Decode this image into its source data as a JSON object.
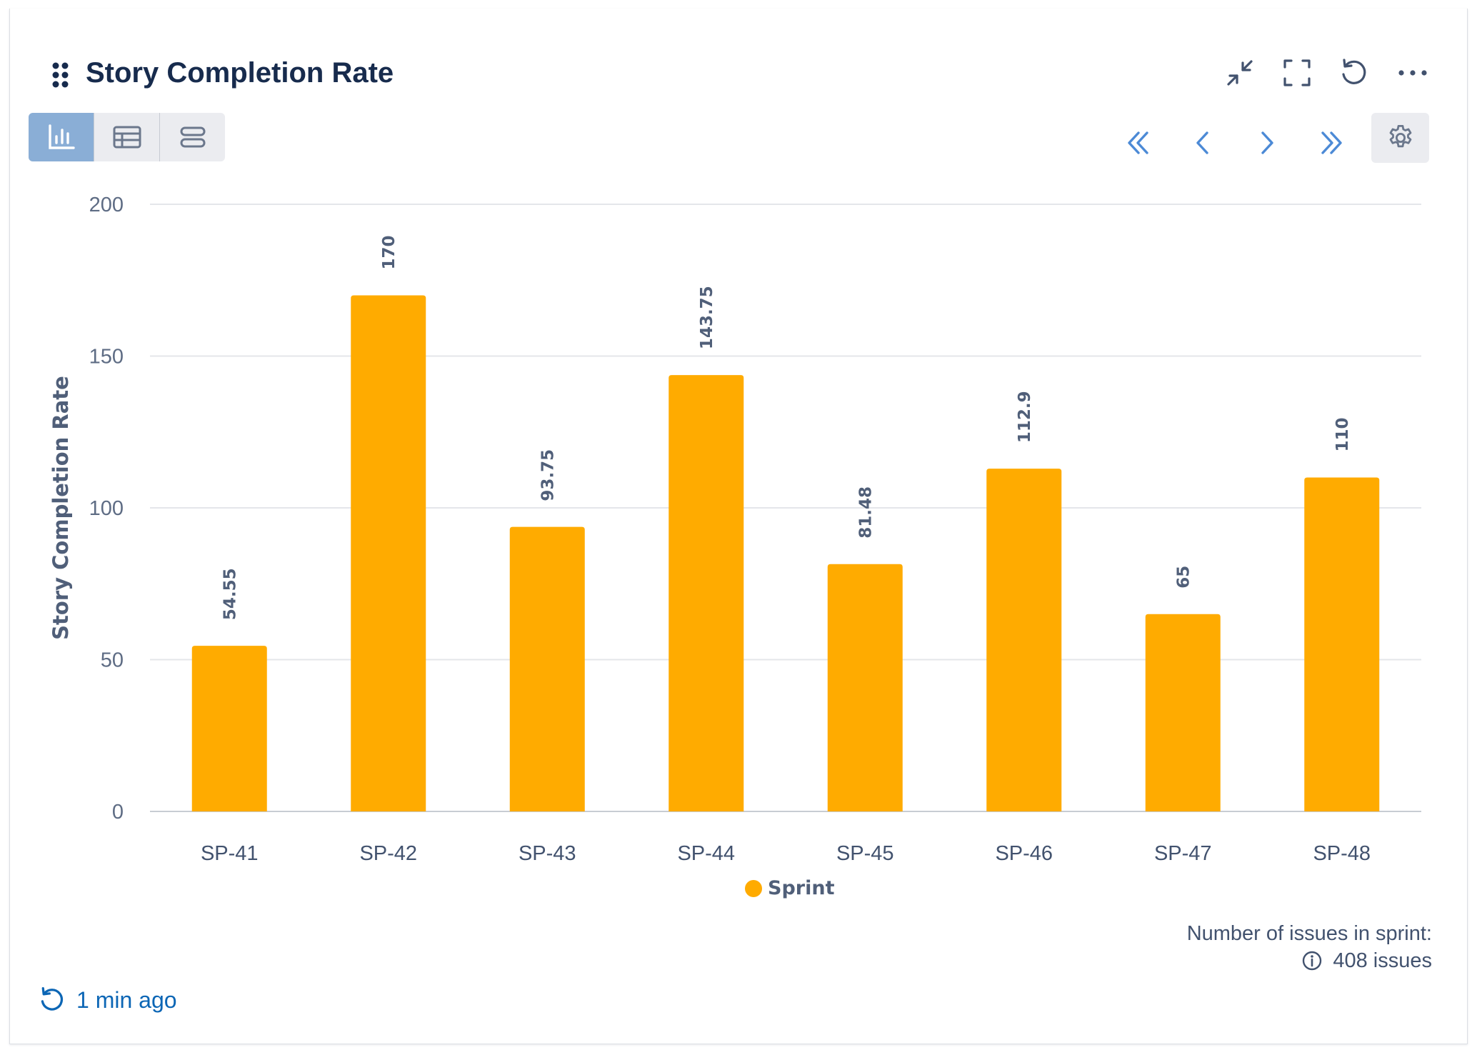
{
  "header": {
    "title": "Story Completion Rate"
  },
  "view_modes": [
    "chart",
    "table",
    "list"
  ],
  "chart_data": {
    "type": "bar",
    "title": "Story Completion Rate",
    "categories": [
      "SP-41",
      "SP-42",
      "SP-43",
      "SP-44",
      "SP-45",
      "SP-46",
      "SP-47",
      "SP-48"
    ],
    "series": [
      {
        "name": "Sprint",
        "values": [
          54.55,
          170,
          93.75,
          143.75,
          81.48,
          112.9,
          65,
          110
        ]
      }
    ],
    "value_labels": [
      "54.55",
      "170",
      "93.75",
      "143.75",
      "81.48",
      "112.9",
      "65",
      "110"
    ],
    "yticks": [
      "0",
      "50",
      "100",
      "150",
      "200"
    ],
    "ylim": [
      0,
      200
    ],
    "xlabel": "",
    "ylabel": "Story Completion Rate",
    "grid": true,
    "legend": "bottom-center",
    "color": "#FFAB00"
  },
  "legend": {
    "label": "Sprint"
  },
  "footer": {
    "issues_label": "Number of issues in sprint:",
    "issues_count": "408 issues",
    "last_refresh": "1 min ago"
  },
  "colors": {
    "bar": "#FFAB00",
    "accent": "#0C66B5",
    "nav": "#4C8AD6",
    "toggle_active": "#8AAED6"
  }
}
